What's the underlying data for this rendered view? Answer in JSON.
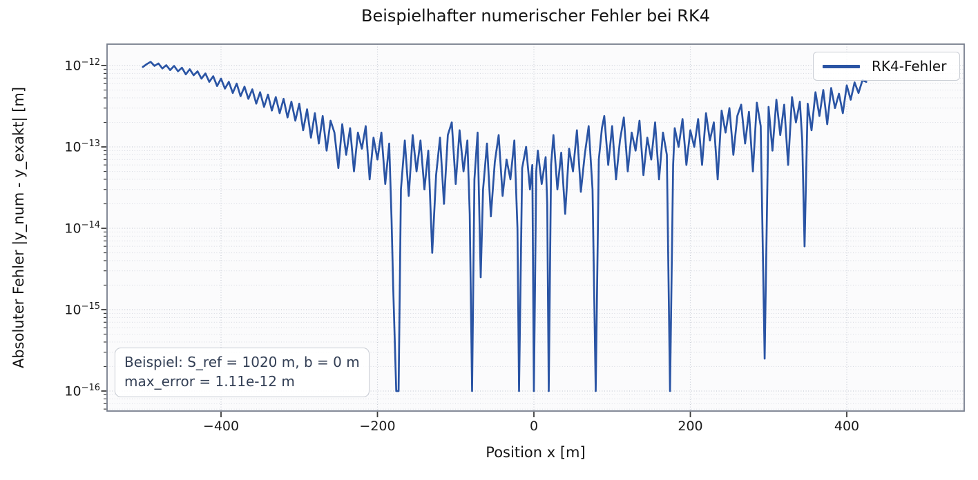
{
  "chart_data": {
    "type": "line",
    "title": "Beispielhafter numerischer Fehler bei RK4",
    "xlabel": "Position x [m]",
    "ylabel": "Absoluter Fehler |y_num - y_exakt| [m]",
    "y_scale": "log",
    "xlim": [
      -545.7,
      550.1
    ],
    "ylim_log10": [
      -16.246,
      -11.737
    ],
    "x_ticks": [
      -400,
      -200,
      0,
      200,
      400
    ],
    "x_tick_labels": [
      "−400",
      "−200",
      "0",
      "200",
      "400"
    ],
    "y_tick_values": [
      1e-12,
      1e-13,
      1e-14,
      1e-15,
      1e-16
    ],
    "y_tick_exponents": [
      "−12",
      "−13",
      "−14",
      "−15",
      "−16"
    ],
    "grid": {
      "major": true,
      "minor": true,
      "style": "dotted"
    },
    "legend": {
      "position": "upper right",
      "entries": [
        {
          "label": "RK4-Fehler",
          "color": "#2a54a4"
        }
      ]
    },
    "annotation": {
      "line1": "Beispiel: S_ref = 1020 m, b = 0 m",
      "line2": "max_error = 1.11e-12 m"
    },
    "max_error": "1.11e-12",
    "series": [
      {
        "name": "RK4-Fehler",
        "color": "#2a54a4",
        "points": [
          [
            -500,
            9.6e-13
          ],
          [
            -495,
            1.04e-12
          ],
          [
            -490,
            1.11e-12
          ],
          [
            -485,
            9.9e-13
          ],
          [
            -480,
            1.06e-12
          ],
          [
            -475,
            9.2e-13
          ],
          [
            -470,
            1.01e-12
          ],
          [
            -465,
            8.8e-13
          ],
          [
            -460,
            9.9e-13
          ],
          [
            -455,
            8.5e-13
          ],
          [
            -450,
            9.4e-13
          ],
          [
            -445,
            7.8e-13
          ],
          [
            -440,
            9e-13
          ],
          [
            -435,
            7.6e-13
          ],
          [
            -430,
            8.5e-13
          ],
          [
            -425,
            6.9e-13
          ],
          [
            -420,
            8e-13
          ],
          [
            -415,
            6.3e-13
          ],
          [
            -410,
            7.4e-13
          ],
          [
            -405,
            5.6e-13
          ],
          [
            -400,
            6.9e-13
          ],
          [
            -395,
            5.2e-13
          ],
          [
            -390,
            6.3e-13
          ],
          [
            -385,
            4.6e-13
          ],
          [
            -380,
            6e-13
          ],
          [
            -375,
            4.2e-13
          ],
          [
            -370,
            5.5e-13
          ],
          [
            -365,
            3.9e-13
          ],
          [
            -360,
            5.1e-13
          ],
          [
            -355,
            3.4e-13
          ],
          [
            -350,
            4.7e-13
          ],
          [
            -345,
            3.1e-13
          ],
          [
            -340,
            4.4e-13
          ],
          [
            -335,
            2.8e-13
          ],
          [
            -330,
            4.1e-13
          ],
          [
            -325,
            2.6e-13
          ],
          [
            -320,
            3.9e-13
          ],
          [
            -315,
            2.3e-13
          ],
          [
            -310,
            3.6e-13
          ],
          [
            -305,
            2.1e-13
          ],
          [
            -300,
            3.4e-13
          ],
          [
            -295,
            1.6e-13
          ],
          [
            -290,
            2.9e-13
          ],
          [
            -285,
            1.3e-13
          ],
          [
            -280,
            2.6e-13
          ],
          [
            -275,
            1.1e-13
          ],
          [
            -270,
            2.4e-13
          ],
          [
            -265,
            9e-14
          ],
          [
            -260,
            2.1e-13
          ],
          [
            -255,
            1.5e-13
          ],
          [
            -250,
            5.5e-14
          ],
          [
            -245,
            1.9e-13
          ],
          [
            -240,
            8e-14
          ],
          [
            -235,
            1.7e-13
          ],
          [
            -230,
            5e-14
          ],
          [
            -225,
            1.5e-13
          ],
          [
            -220,
            9.5e-14
          ],
          [
            -215,
            1.8e-13
          ],
          [
            -210,
            4e-14
          ],
          [
            -205,
            1.3e-13
          ],
          [
            -200,
            7e-14
          ],
          [
            -195,
            1.5e-13
          ],
          [
            -190,
            3.5e-14
          ],
          [
            -185,
            1.1e-13
          ],
          [
            -182,
            1.3e-14
          ],
          [
            -180,
            2e-15
          ],
          [
            -176,
            1e-16
          ],
          [
            -173,
            1e-16
          ],
          [
            -170,
            3e-14
          ],
          [
            -165,
            1.2e-13
          ],
          [
            -160,
            2.5e-14
          ],
          [
            -155,
            1.4e-13
          ],
          [
            -150,
            5e-14
          ],
          [
            -145,
            1.2e-13
          ],
          [
            -140,
            3e-14
          ],
          [
            -135,
            9e-14
          ],
          [
            -130,
            5e-15
          ],
          [
            -125,
            4.5e-14
          ],
          [
            -120,
            1.3e-13
          ],
          [
            -115,
            2e-14
          ],
          [
            -110,
            1.4e-13
          ],
          [
            -105,
            2e-13
          ],
          [
            -100,
            3.5e-14
          ],
          [
            -95,
            1.6e-13
          ],
          [
            -90,
            5e-14
          ],
          [
            -85,
            1.2e-13
          ],
          [
            -82,
            1.5e-14
          ],
          [
            -79,
            1e-16
          ],
          [
            -76,
            4e-14
          ],
          [
            -72,
            1.5e-13
          ],
          [
            -68,
            2.5e-15
          ],
          [
            -65,
            3e-14
          ],
          [
            -60,
            1.1e-13
          ],
          [
            -55,
            1.4e-14
          ],
          [
            -50,
            6.5e-14
          ],
          [
            -45,
            1.4e-13
          ],
          [
            -40,
            2.5e-14
          ],
          [
            -35,
            7e-14
          ],
          [
            -30,
            4e-14
          ],
          [
            -25,
            1.2e-13
          ],
          [
            -21,
            1e-14
          ],
          [
            -19,
            1e-16
          ],
          [
            -15,
            5.5e-14
          ],
          [
            -10,
            1e-13
          ],
          [
            -5,
            3e-14
          ],
          [
            -2,
            6e-14
          ],
          [
            0,
            1e-16
          ],
          [
            3,
            5e-14
          ],
          [
            5,
            9e-14
          ],
          [
            10,
            3.5e-14
          ],
          [
            15,
            7.5e-14
          ],
          [
            17,
            2e-14
          ],
          [
            19,
            1e-16
          ],
          [
            22,
            6e-14
          ],
          [
            25,
            1.4e-13
          ],
          [
            30,
            3e-14
          ],
          [
            35,
            8.5e-14
          ],
          [
            40,
            1.5e-14
          ],
          [
            45,
            9.5e-14
          ],
          [
            50,
            5e-14
          ],
          [
            55,
            1.6e-13
          ],
          [
            60,
            2.8e-14
          ],
          [
            65,
            8e-14
          ],
          [
            70,
            1.8e-13
          ],
          [
            75,
            3e-14
          ],
          [
            79,
            1e-16
          ],
          [
            83,
            7e-14
          ],
          [
            87,
            1.7e-13
          ],
          [
            90,
            2.4e-13
          ],
          [
            95,
            6e-14
          ],
          [
            100,
            1.8e-13
          ],
          [
            105,
            4e-14
          ],
          [
            110,
            1.2e-13
          ],
          [
            115,
            2.3e-13
          ],
          [
            120,
            5e-14
          ],
          [
            125,
            1.5e-13
          ],
          [
            130,
            9e-14
          ],
          [
            135,
            2.1e-13
          ],
          [
            140,
            4.5e-14
          ],
          [
            145,
            1.3e-13
          ],
          [
            150,
            7e-14
          ],
          [
            155,
            2e-13
          ],
          [
            160,
            4e-14
          ],
          [
            165,
            1.5e-13
          ],
          [
            170,
            8e-14
          ],
          [
            174,
            1e-16
          ],
          [
            178,
            6e-14
          ],
          [
            180,
            1.7e-13
          ],
          [
            185,
            1e-13
          ],
          [
            190,
            2.2e-13
          ],
          [
            195,
            6e-14
          ],
          [
            200,
            1.6e-13
          ],
          [
            205,
            1e-13
          ],
          [
            210,
            2.2e-13
          ],
          [
            215,
            6e-14
          ],
          [
            220,
            2.6e-13
          ],
          [
            225,
            1.2e-13
          ],
          [
            230,
            2e-13
          ],
          [
            235,
            4e-14
          ],
          [
            240,
            2.8e-13
          ],
          [
            245,
            1.5e-13
          ],
          [
            250,
            3e-13
          ],
          [
            255,
            8e-14
          ],
          [
            260,
            2.4e-13
          ],
          [
            265,
            3.3e-13
          ],
          [
            270,
            1.1e-13
          ],
          [
            275,
            2.7e-13
          ],
          [
            280,
            5e-14
          ],
          [
            285,
            3.5e-13
          ],
          [
            290,
            1.8e-13
          ],
          [
            295,
            2.5e-16
          ],
          [
            300,
            3.1e-13
          ],
          [
            305,
            9e-14
          ],
          [
            310,
            3.8e-13
          ],
          [
            315,
            1.4e-13
          ],
          [
            320,
            3.3e-13
          ],
          [
            325,
            6e-14
          ],
          [
            330,
            4.1e-13
          ],
          [
            335,
            2e-13
          ],
          [
            340,
            3.6e-13
          ],
          [
            343,
            1.2e-13
          ],
          [
            346,
            6e-15
          ],
          [
            350,
            3.4e-13
          ],
          [
            355,
            1.6e-13
          ],
          [
            360,
            4.7e-13
          ],
          [
            365,
            2.4e-13
          ],
          [
            370,
            5e-13
          ],
          [
            375,
            1.9e-13
          ],
          [
            380,
            5.3e-13
          ],
          [
            385,
            3e-13
          ],
          [
            390,
            4.5e-13
          ],
          [
            395,
            2.6e-13
          ],
          [
            400,
            5.7e-13
          ],
          [
            405,
            3.8e-13
          ],
          [
            410,
            6.2e-13
          ],
          [
            415,
            4.6e-13
          ],
          [
            420,
            6.6e-13
          ],
          [
            425,
            6.3e-13
          ]
        ]
      }
    ],
    "colors": {
      "line": "#2a54a4",
      "spine": "#777e8c",
      "grid_major": "#c8ccd5",
      "grid_minor": "#d9dce3",
      "tick": "#3a3a3a",
      "plot_bg": "#fbfbfc",
      "annotation_text": "#333f55"
    }
  }
}
